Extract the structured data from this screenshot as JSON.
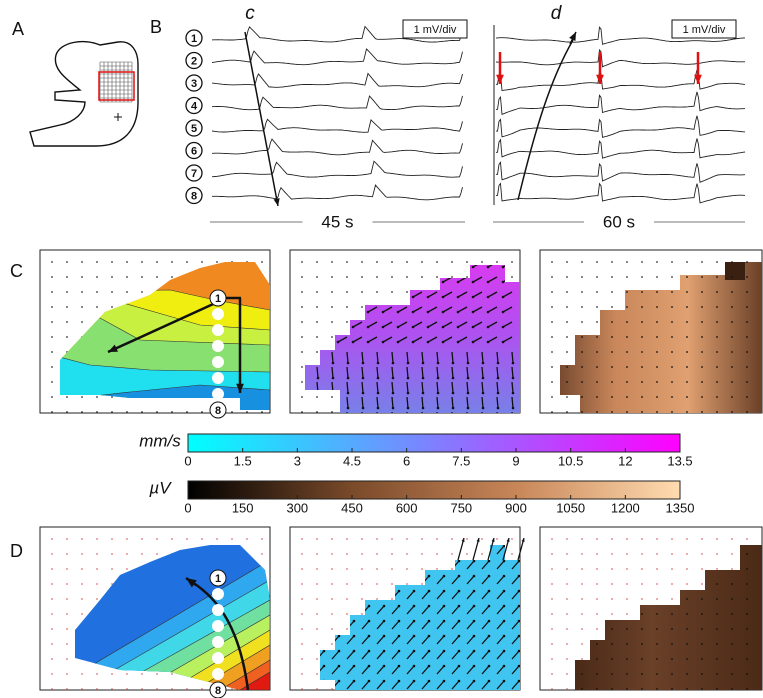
{
  "panel_labels": [
    "A",
    "B",
    "C",
    "D"
  ],
  "traces": {
    "channels": [
      "1",
      "2",
      "3",
      "4",
      "5",
      "6",
      "7",
      "8"
    ],
    "left": {
      "wave": "c",
      "scale": "1 mV/div",
      "duration": "45 s"
    },
    "right": {
      "wave": "d",
      "scale": "1 mV/div",
      "duration": "60 s"
    }
  },
  "maps": {
    "C": {
      "electrode_labels": [
        "1",
        "8"
      ]
    },
    "D": {
      "electrode_labels": [
        "1",
        "8"
      ]
    }
  },
  "colorbars": [
    {
      "label": "mm/s",
      "lim": [
        0,
        13.5
      ],
      "ticks": [
        0,
        1.5,
        3,
        4.5,
        6,
        7.5,
        9,
        10.5,
        12,
        13.5
      ],
      "colors": [
        "#00ffff",
        "#ff00ff"
      ]
    },
    {
      "label": "µV",
      "lim": [
        0,
        1350
      ],
      "ticks": [
        0,
        150,
        300,
        450,
        600,
        750,
        900,
        1050,
        1200,
        1350
      ],
      "colors": [
        "#000000",
        "#7a4a2a",
        "#c88658",
        "#ffdcb0"
      ]
    }
  ]
}
